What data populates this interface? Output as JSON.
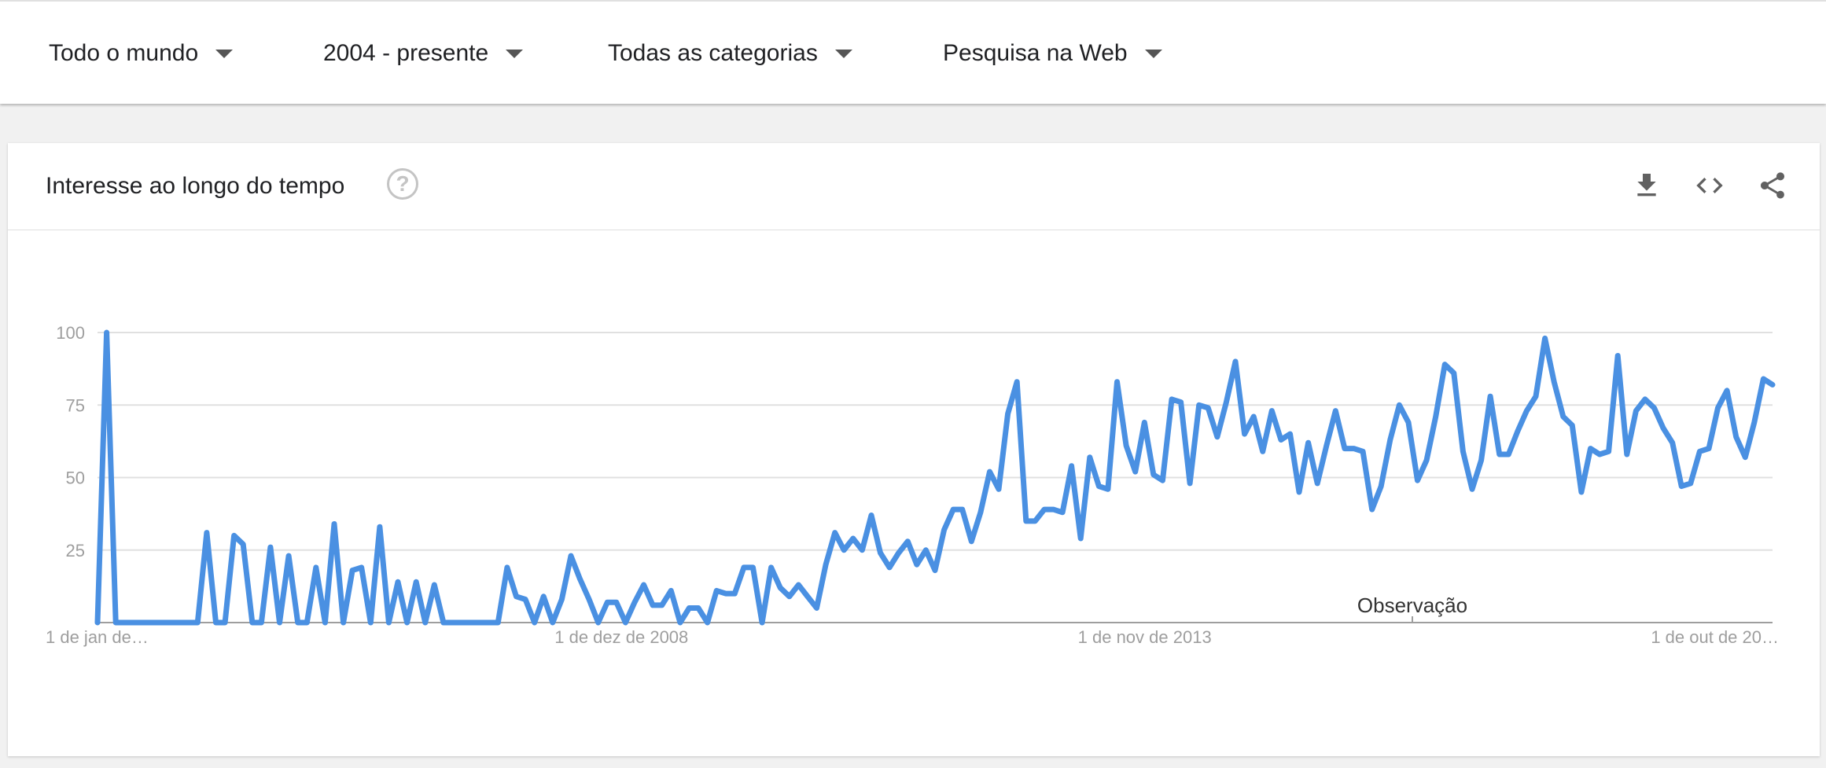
{
  "filters": {
    "region": "Todo o mundo",
    "period": "2004 - presente",
    "category": "Todas as categorias",
    "search_type": "Pesquisa na Web"
  },
  "card": {
    "title": "Interesse ao longo do tempo",
    "help_icon": "help-circle-icon",
    "icons": [
      "download-icon",
      "embed-code-icon",
      "share-icon"
    ]
  },
  "colors": {
    "line": "#4a90e2",
    "grid": "#e0e0e0",
    "axis_text": "#9e9e9e"
  },
  "chart_data": {
    "type": "line",
    "title": "Interesse ao longo do tempo",
    "ylim": [
      0,
      100
    ],
    "yticks": [
      25,
      50,
      75,
      100
    ],
    "xticks": [
      "1 de jan de…",
      "1 de dez de 2008",
      "1 de nov de 2013",
      "1 de out de 20…"
    ],
    "annotation": "Observação",
    "grid": true,
    "series": [
      {
        "values": [
          0,
          100,
          0,
          0,
          0,
          0,
          0,
          0,
          0,
          0,
          0,
          0,
          31,
          0,
          0,
          30,
          27,
          0,
          0,
          26,
          0,
          23,
          0,
          0,
          19,
          0,
          34,
          0,
          18,
          19,
          0,
          33,
          0,
          14,
          0,
          14,
          0,
          13,
          0,
          0,
          0,
          0,
          0,
          0,
          0,
          19,
          9,
          8,
          0,
          9,
          0,
          8,
          23,
          15,
          8,
          0,
          7,
          7,
          0,
          7,
          13,
          6,
          6,
          11,
          0,
          5,
          5,
          0,
          11,
          10,
          10,
          19,
          19,
          0,
          19,
          12,
          9,
          13,
          9,
          5,
          20,
          31,
          25,
          29,
          25,
          37,
          24,
          19,
          24,
          28,
          20,
          25,
          18,
          32,
          39,
          39,
          28,
          38,
          52,
          46,
          72,
          83,
          35,
          35,
          39,
          39,
          38,
          54,
          29,
          57,
          47,
          46,
          83,
          61,
          52,
          69,
          51,
          49,
          77,
          76,
          48,
          75,
          74,
          64,
          76,
          90,
          65,
          71,
          59,
          73,
          63,
          65,
          45,
          62,
          48,
          61,
          73,
          60,
          60,
          59,
          39,
          47,
          63,
          75,
          69,
          49,
          56,
          71,
          89,
          86,
          59,
          46,
          56,
          78,
          58,
          58,
          66,
          73,
          78,
          98,
          83,
          71,
          68,
          45,
          60,
          58,
          59,
          92,
          58,
          73,
          77,
          74,
          67,
          62,
          47,
          48,
          59,
          60,
          74,
          80,
          64,
          57,
          69,
          84,
          82
        ]
      }
    ]
  }
}
